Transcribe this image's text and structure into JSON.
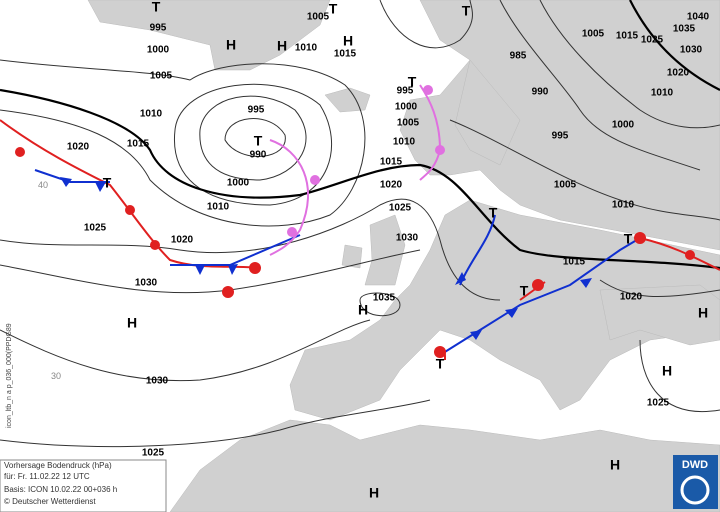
{
  "map": {
    "isobar_labels": [
      995,
      1005,
      1010,
      1015,
      985,
      1005,
      1015,
      1025,
      1040,
      1035,
      1030,
      1020,
      1010,
      1000,
      1005,
      995,
      990,
      1010,
      1015,
      1020,
      1000,
      1010,
      995,
      1000,
      1005,
      1010,
      1015,
      1020,
      1025,
      1030,
      1035,
      1020,
      1025,
      1030,
      990,
      995,
      1000,
      1005,
      1010,
      1015,
      1020,
      1030,
      1025,
      1025
    ],
    "pressure_centers": [
      "T",
      "T",
      "T",
      "H",
      "H",
      "H",
      "T",
      "T",
      "T",
      "T",
      "T",
      "T",
      "T",
      "H",
      "H",
      "H",
      "H",
      "H",
      "H"
    ],
    "grid_labels": [
      "40",
      "30"
    ],
    "side_label": "icon_ltb_n a p_036_000(PPDG89",
    "info_box": [
      "Vorhersage Bodendruck (hPa)",
      "für:  Fr. 11.02.22  12 UTC",
      "Basis: ICON  10.02.22 00+036 h",
      "© Deutscher Wetterdienst"
    ],
    "logo": "DWD"
  }
}
